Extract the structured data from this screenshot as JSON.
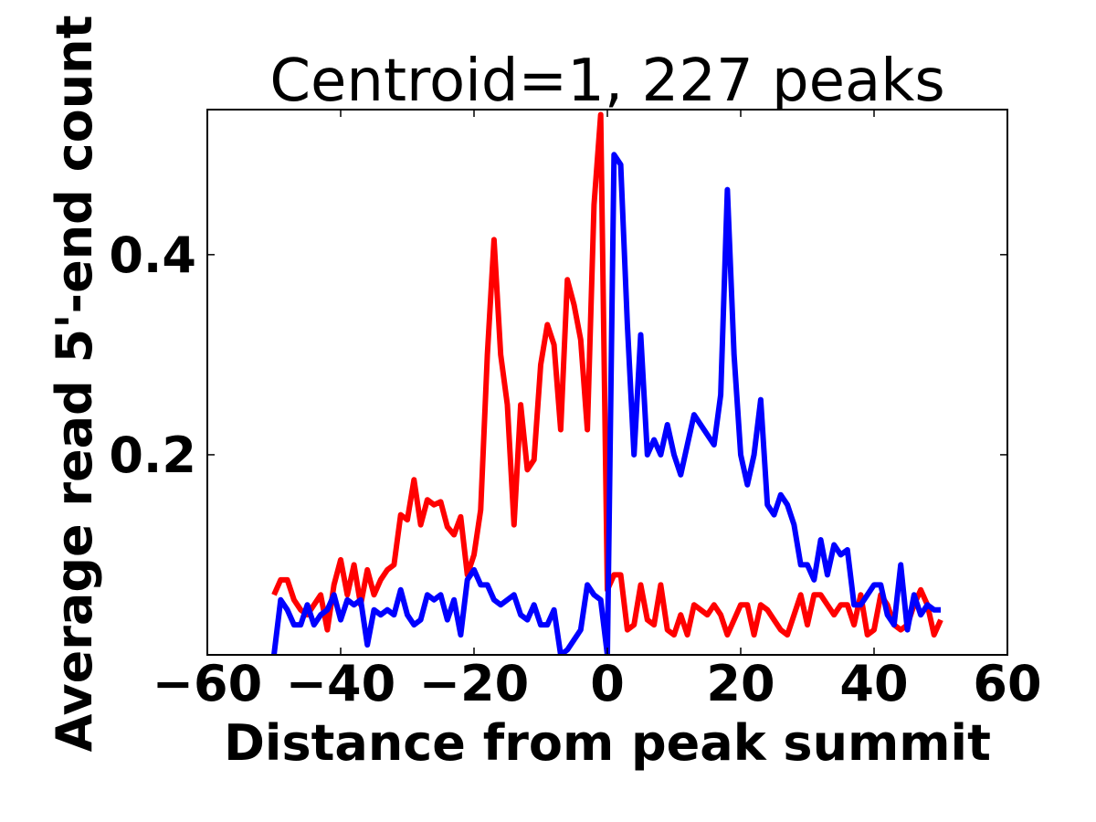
{
  "chart_data": {
    "type": "line",
    "title": "Centroid=1, 227 peaks",
    "xlabel": "Distance from peak summit",
    "ylabel": "Average read 5'-end count",
    "xlim": [
      -60,
      60
    ],
    "ylim": [
      0.0,
      0.545
    ],
    "xticks": [
      -60,
      -40,
      -20,
      0,
      20,
      40,
      60
    ],
    "xtick_labels": [
      "−60",
      "−40",
      "−20",
      "0",
      "20",
      "40",
      "60"
    ],
    "yticks": [
      0.2,
      0.4
    ],
    "ytick_labels": [
      "0.2",
      "0.4"
    ],
    "grid": false,
    "legend": "none",
    "x": [
      -50,
      -49,
      -48,
      -47,
      -46,
      -45,
      -44,
      -43,
      -42,
      -41,
      -40,
      -39,
      -38,
      -37,
      -36,
      -35,
      -34,
      -33,
      -32,
      -31,
      -30,
      -29,
      -28,
      -27,
      -26,
      -25,
      -24,
      -23,
      -22,
      -21,
      -20,
      -19,
      -18,
      -17,
      -16,
      -15,
      -14,
      -13,
      -12,
      -11,
      -10,
      -9,
      -8,
      -7,
      -6,
      -5,
      -4,
      -3,
      -2,
      -1,
      0,
      1,
      2,
      3,
      4,
      5,
      6,
      7,
      8,
      9,
      10,
      11,
      12,
      13,
      14,
      15,
      16,
      17,
      18,
      19,
      20,
      21,
      22,
      23,
      24,
      25,
      26,
      27,
      28,
      29,
      30,
      31,
      32,
      33,
      34,
      35,
      36,
      37,
      38,
      39,
      40,
      41,
      42,
      43,
      44,
      45,
      46,
      47,
      48,
      49,
      50
    ],
    "series": [
      {
        "color": "#ff0000",
        "values": [
          0.06,
          0.075,
          0.075,
          0.055,
          0.045,
          0.04,
          0.05,
          0.06,
          0.025,
          0.07,
          0.095,
          0.06,
          0.09,
          0.05,
          0.085,
          0.06,
          0.075,
          0.085,
          0.09,
          0.14,
          0.135,
          0.175,
          0.13,
          0.155,
          0.15,
          0.153,
          0.128,
          0.12,
          0.138,
          0.08,
          0.1,
          0.145,
          0.3,
          0.415,
          0.3,
          0.25,
          0.13,
          0.25,
          0.185,
          0.195,
          0.29,
          0.33,
          0.31,
          0.225,
          0.375,
          0.35,
          0.315,
          0.225,
          0.45,
          0.54,
          0.065,
          0.08,
          0.08,
          0.025,
          0.03,
          0.07,
          0.035,
          0.03,
          0.07,
          0.025,
          0.02,
          0.04,
          0.02,
          0.05,
          0.045,
          0.04,
          0.05,
          0.04,
          0.02,
          0.035,
          0.05,
          0.05,
          0.02,
          0.05,
          0.045,
          0.035,
          0.025,
          0.02,
          0.04,
          0.06,
          0.03,
          0.06,
          0.06,
          0.05,
          0.04,
          0.05,
          0.05,
          0.03,
          0.06,
          0.02,
          0.025,
          0.06,
          0.05,
          0.03,
          0.025,
          0.03,
          0.05,
          0.065,
          0.05,
          0.02,
          0.035
        ]
      },
      {
        "color": "#0000ff",
        "values": [
          0.0,
          0.055,
          0.045,
          0.03,
          0.03,
          0.05,
          0.03,
          0.04,
          0.045,
          0.06,
          0.035,
          0.055,
          0.05,
          0.055,
          0.01,
          0.045,
          0.04,
          0.045,
          0.04,
          0.065,
          0.04,
          0.03,
          0.035,
          0.06,
          0.055,
          0.06,
          0.035,
          0.055,
          0.02,
          0.075,
          0.085,
          0.07,
          0.07,
          0.055,
          0.05,
          0.055,
          0.06,
          0.04,
          0.035,
          0.05,
          0.03,
          0.03,
          0.045,
          0.0,
          0.005,
          0.015,
          0.025,
          0.07,
          0.06,
          0.055,
          0.0,
          0.5,
          0.49,
          0.33,
          0.2,
          0.32,
          0.2,
          0.215,
          0.2,
          0.23,
          0.2,
          0.18,
          0.21,
          0.24,
          0.23,
          0.22,
          0.21,
          0.26,
          0.465,
          0.3,
          0.2,
          0.17,
          0.2,
          0.255,
          0.15,
          0.14,
          0.16,
          0.15,
          0.13,
          0.09,
          0.09,
          0.075,
          0.115,
          0.08,
          0.11,
          0.1,
          0.105,
          0.05,
          0.05,
          0.06,
          0.07,
          0.07,
          0.04,
          0.03,
          0.09,
          0.025,
          0.06,
          0.04,
          0.05,
          0.045,
          0.045
        ]
      }
    ]
  }
}
